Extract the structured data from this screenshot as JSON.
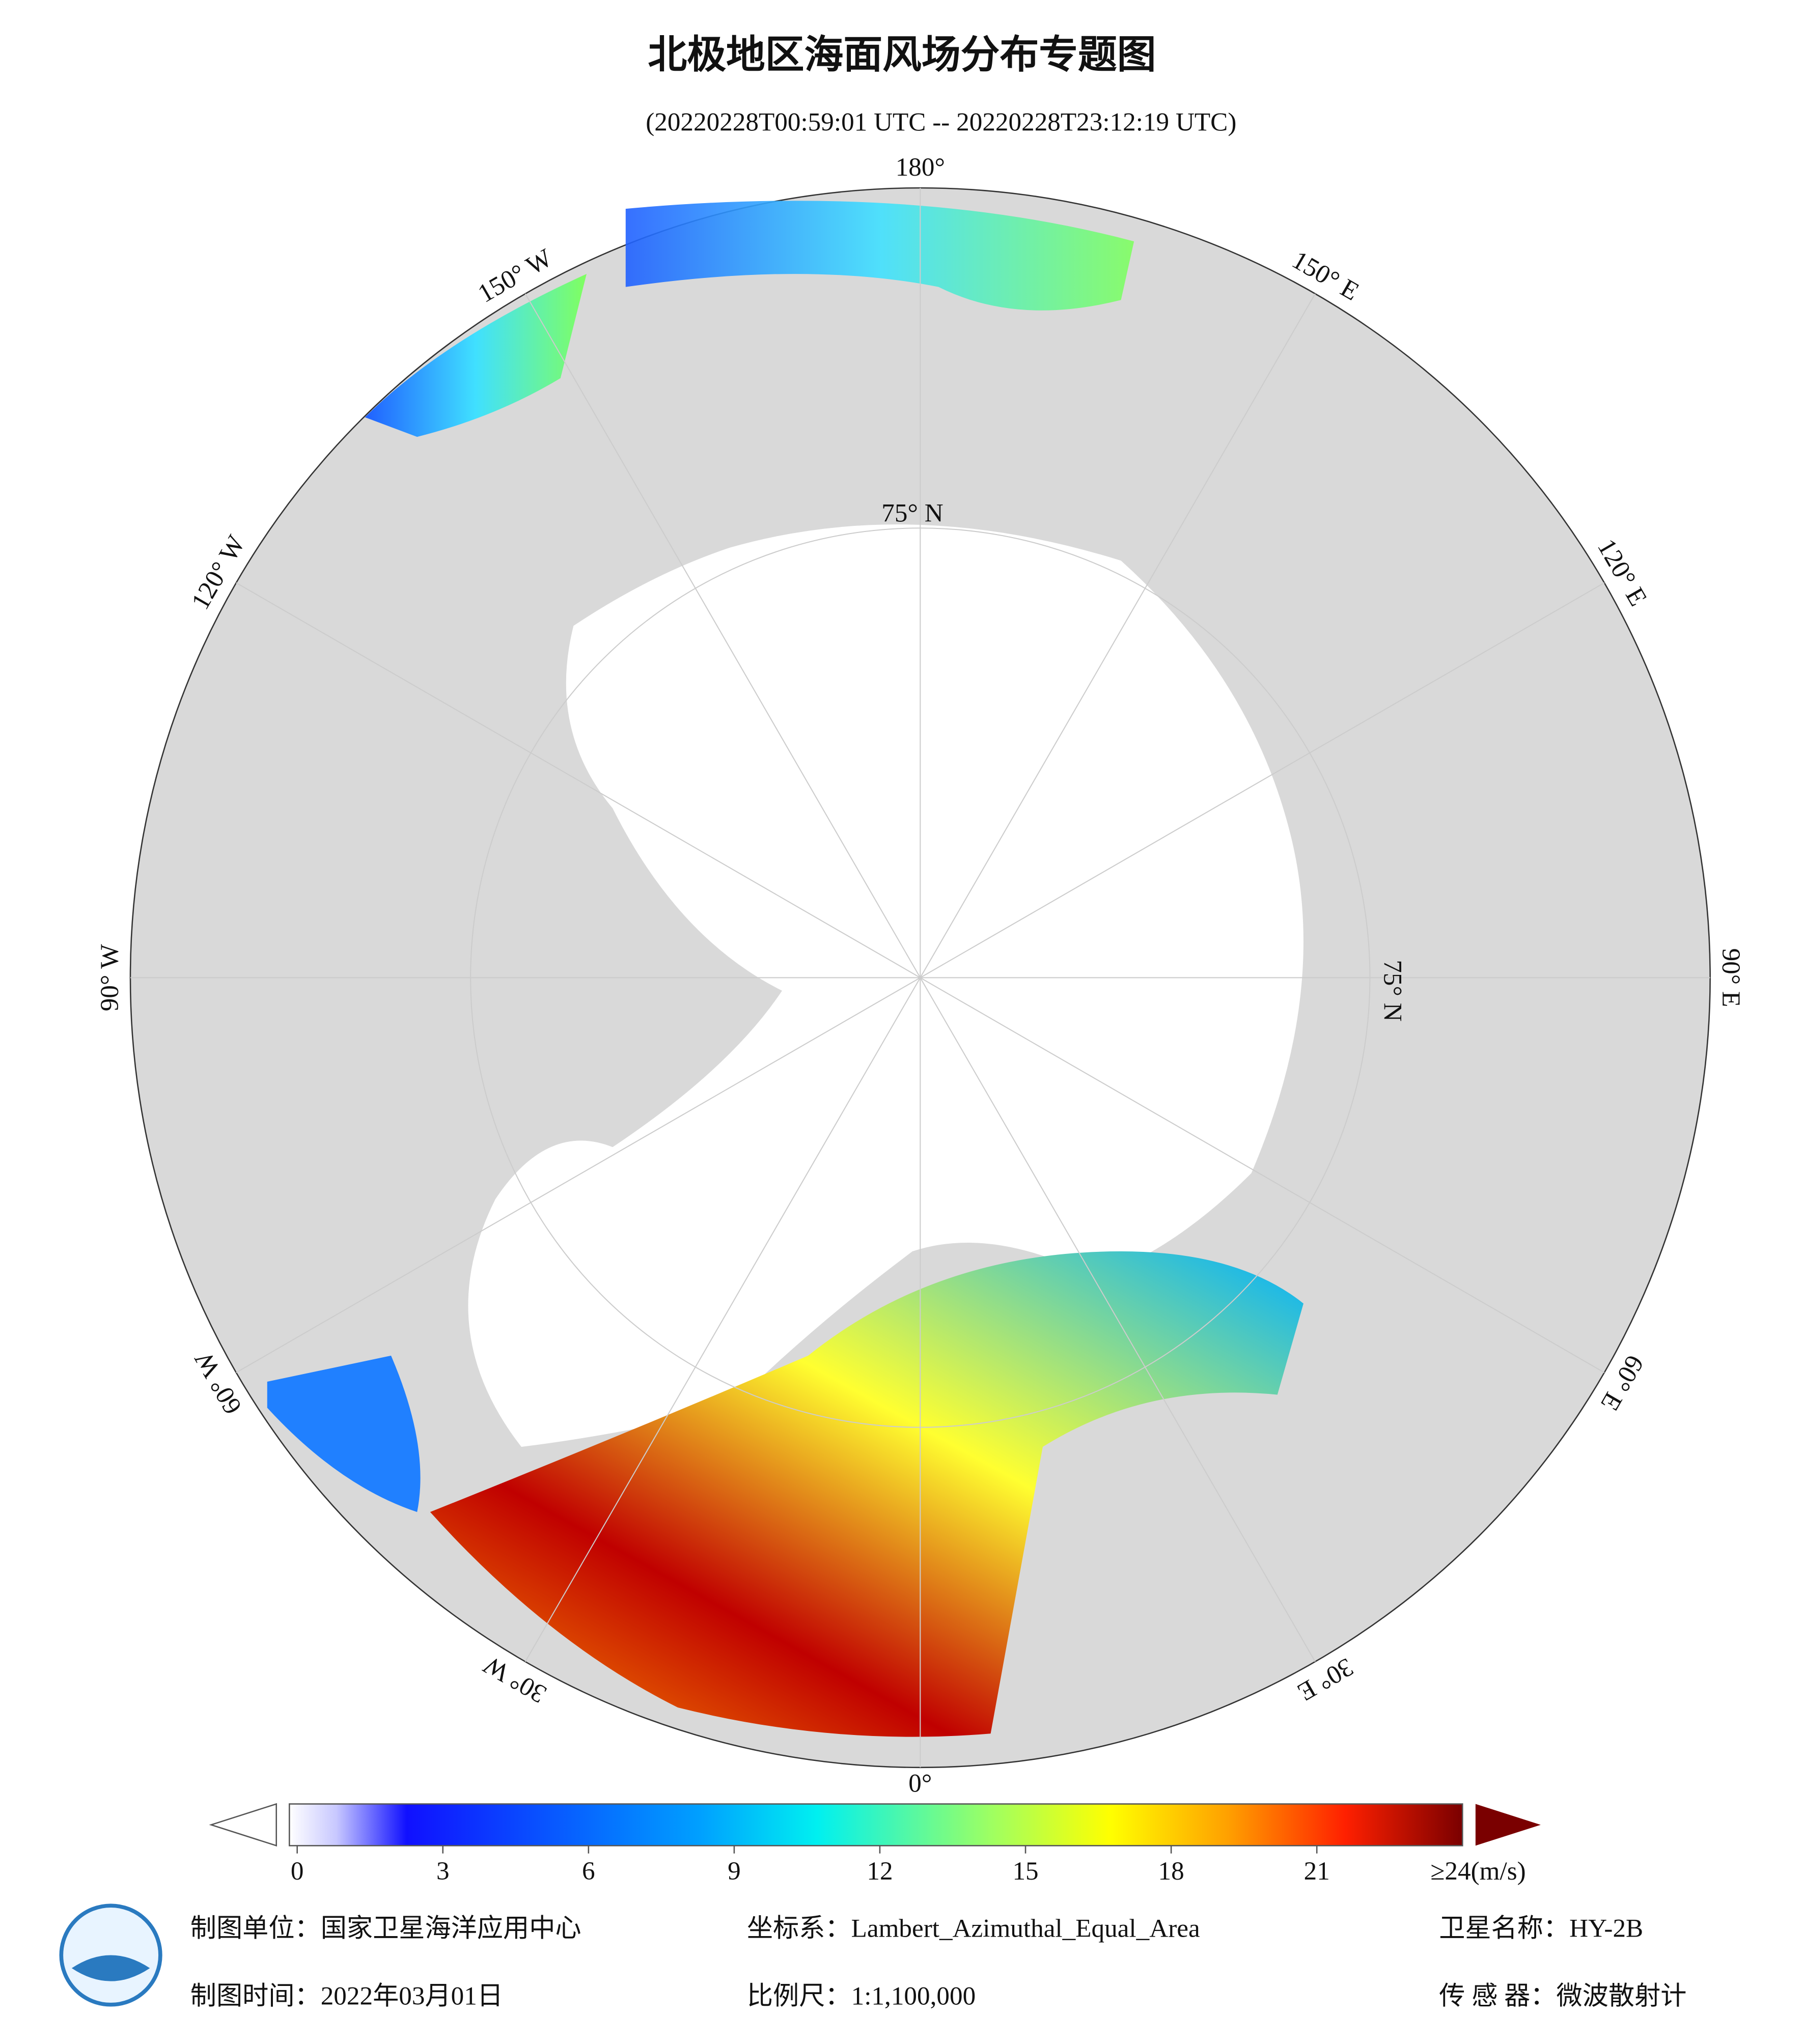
{
  "title": "北极地区海面风场分布专题图",
  "subtitle": "(20220228T00:59:01 UTC -- 20220228T23:12:19 UTC)",
  "lon_labels": [
    "180°",
    "150° E",
    "120° E",
    "90° E",
    "60° E",
    "30° E",
    "0°",
    "30° W",
    "60° W",
    "90° W",
    "120° W",
    "150° W"
  ],
  "lat_label": "75° N",
  "colorbar": {
    "ticks": [
      0,
      3,
      6,
      9,
      12,
      15,
      18,
      21
    ],
    "range": [
      0,
      24
    ],
    "max_label": "≥24(m/s)"
  },
  "footer": {
    "unit": "制图单位：国家卫星海洋应用中心",
    "crs": "坐标系：Lambert_Azimuthal_Equal_Area",
    "satellite": "卫星名称：HY-2B",
    "date": "制图时间：2022年03月01日",
    "scale": "比例尺：1:1,100,000",
    "sensor": "传 感 器：微波散射计"
  }
}
